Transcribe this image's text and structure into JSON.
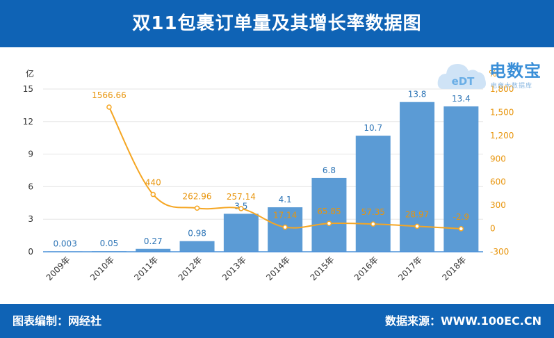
{
  "header": {
    "title": "双11包裹订单量及其增长率数据图"
  },
  "footer": {
    "editor": "图表编制：网经社",
    "source": "数据来源：WWW.100EC.CN"
  },
  "logo": {
    "name": "电数宝",
    "tagline": "电商大数据库",
    "mark": "eDT"
  },
  "colors": {
    "header_bg": "#0f63b5",
    "bar": "#5b9bd5",
    "line": "#f5a623",
    "left_axis": "#333333",
    "right_axis": "#e8950c",
    "bar_label": "#2e75b6"
  },
  "chart_data": {
    "type": "bar",
    "categories": [
      "2009年",
      "2010年",
      "2011年",
      "2012年",
      "2013年",
      "2014年",
      "2015年",
      "2016年",
      "2017年",
      "2018年"
    ],
    "series": [
      {
        "type": "bar",
        "axis": "left",
        "values": [
          0.003,
          0.05,
          0.27,
          0.98,
          3.5,
          4.1,
          6.8,
          10.7,
          13.8,
          13.4
        ]
      },
      {
        "type": "line",
        "axis": "right",
        "values": [
          null,
          1566.66,
          440,
          262.96,
          257.14,
          17.14,
          65.85,
          57.35,
          28.97,
          -2.9
        ]
      }
    ],
    "y_left": {
      "unit": "亿",
      "ylim": [
        0,
        15
      ],
      "ticks": [
        0,
        3,
        6,
        9,
        12,
        15
      ]
    },
    "y_right": {
      "unit": "%",
      "ylim": [
        -300,
        1800
      ],
      "ticks": [
        "-300",
        "0",
        "300",
        "600",
        "900",
        "1,200",
        "1,500",
        "1,800"
      ]
    },
    "bar_labels": [
      "0.003",
      "0.05",
      "0.27",
      "0.98",
      "3.5",
      "4.1",
      "6.8",
      "10.7",
      "13.8",
      "13.4"
    ],
    "line_labels": [
      "",
      "1566.66",
      "440",
      "262.96",
      "257.14",
      "17.14",
      "65.85",
      "57.35",
      "28.97",
      "-2.9"
    ],
    "grid": true
  }
}
